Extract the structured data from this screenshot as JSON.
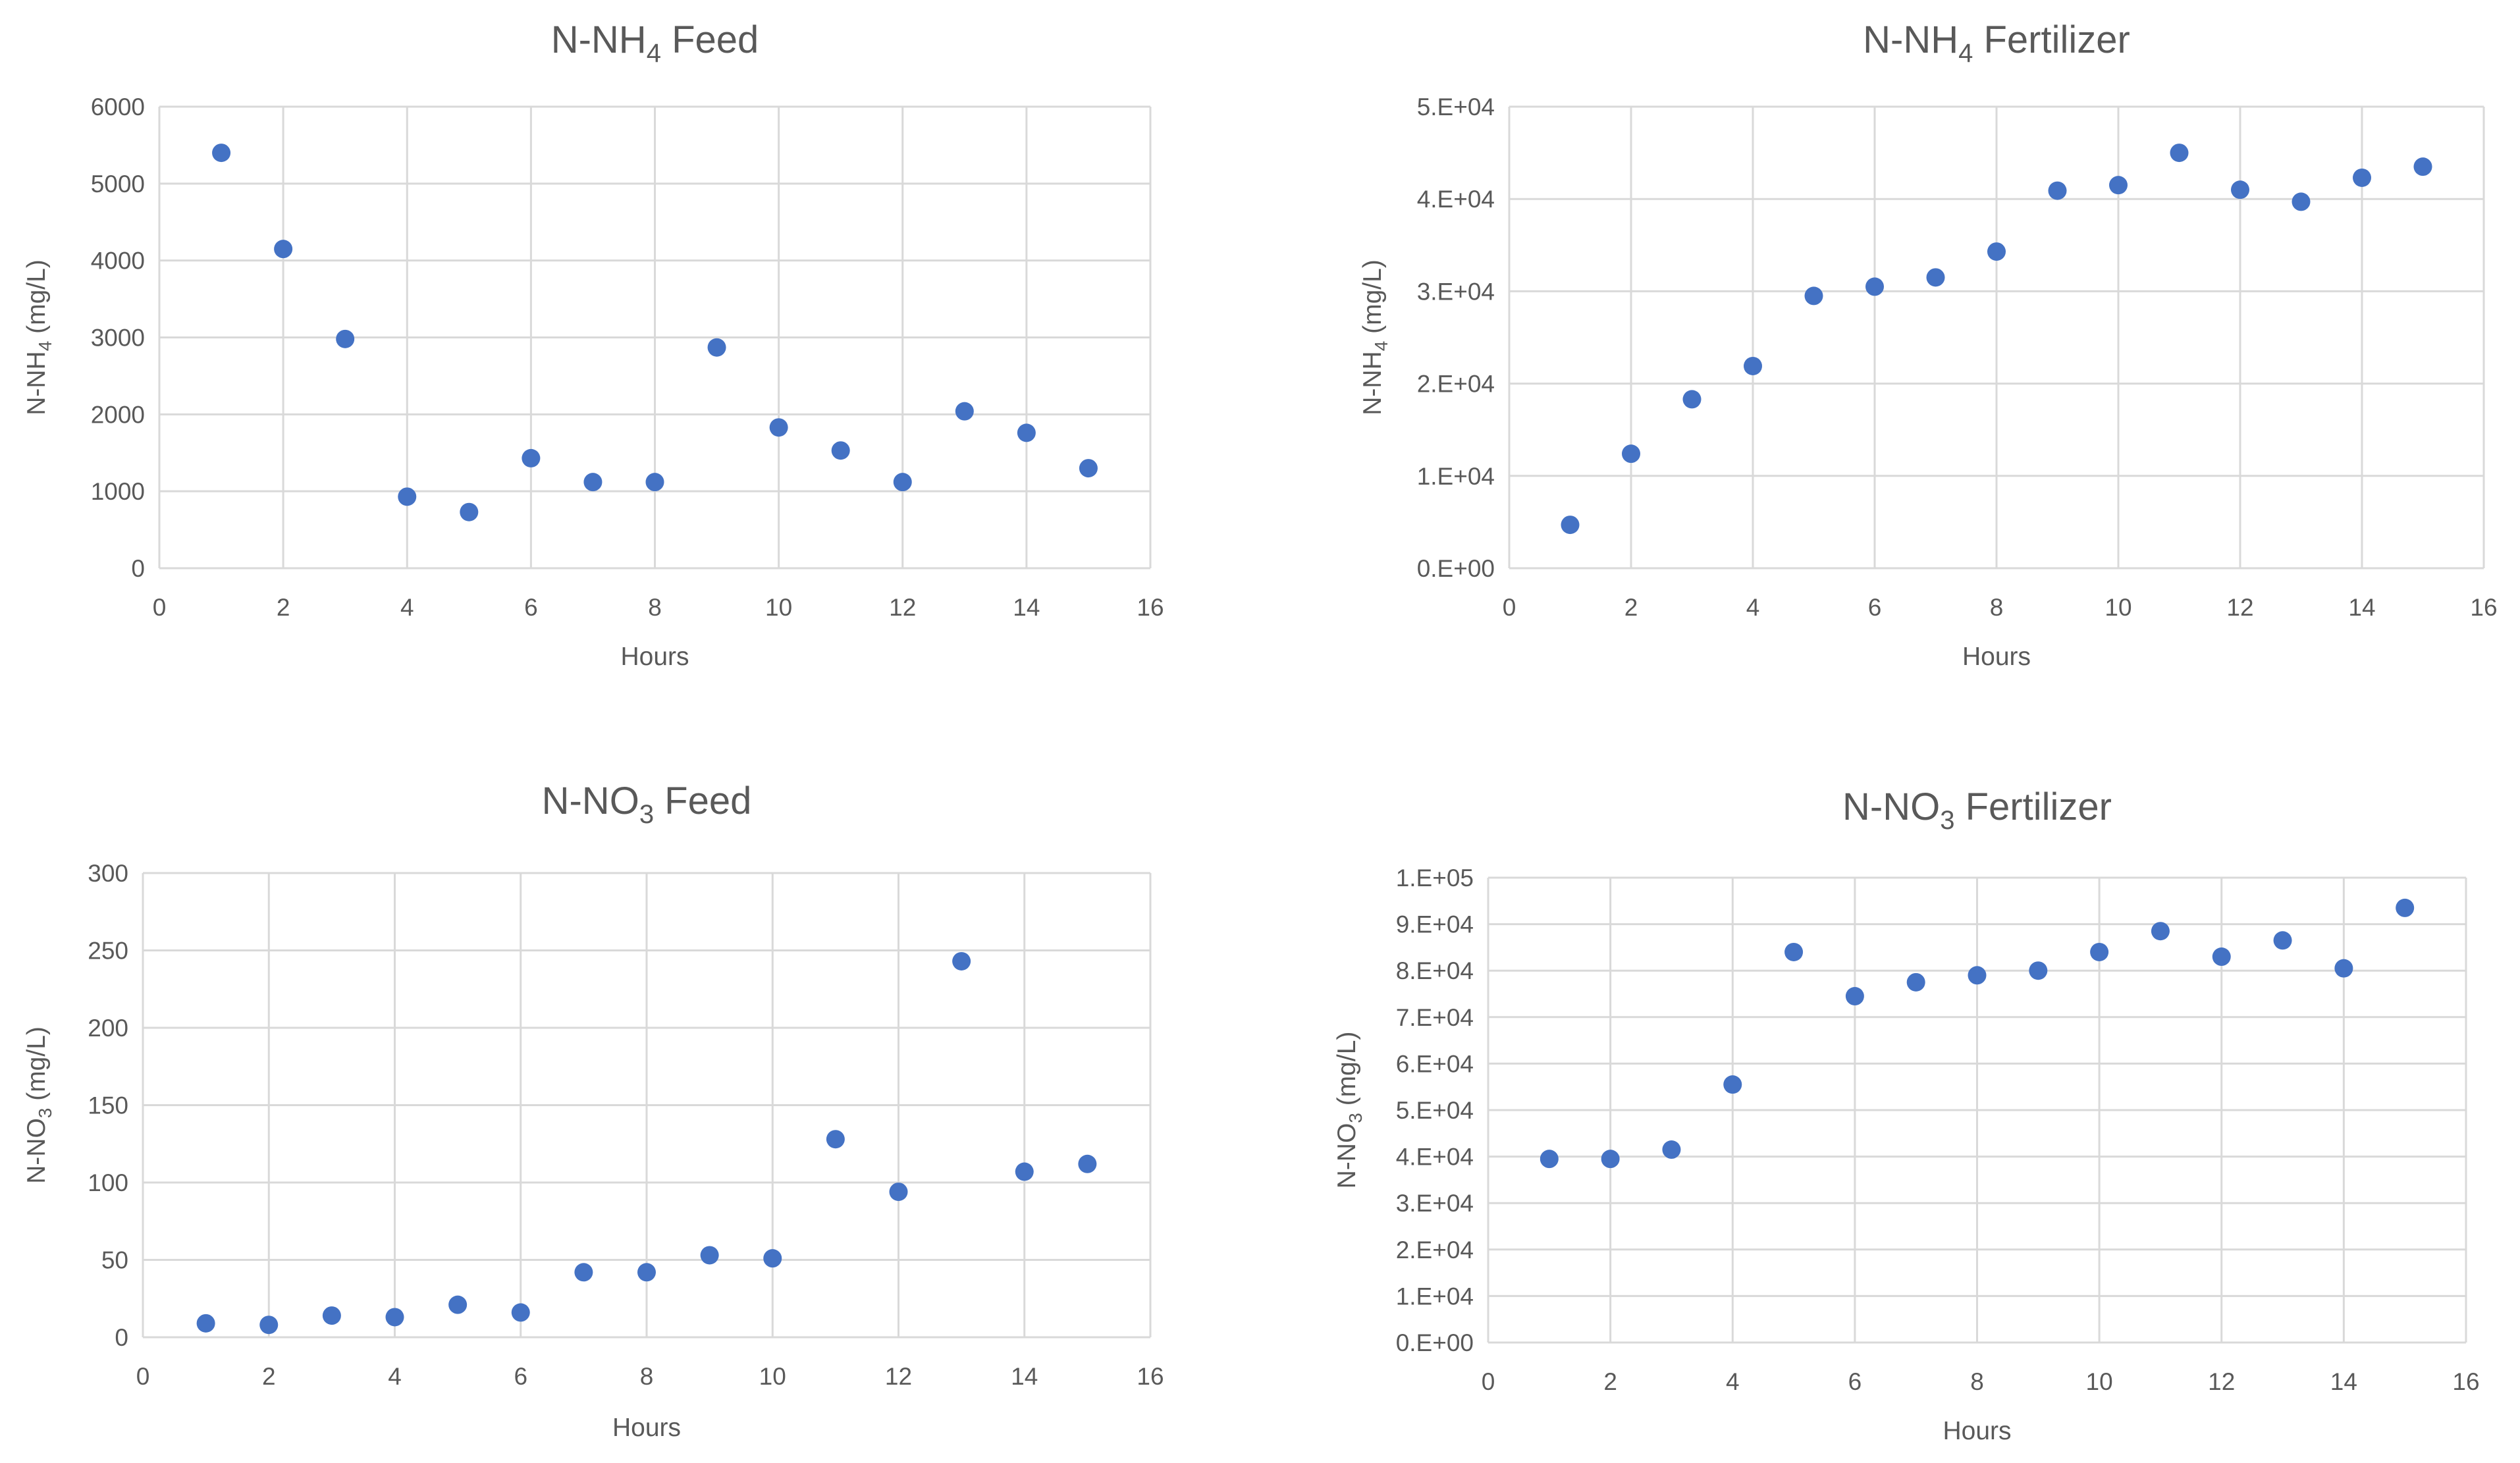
{
  "chart_data": [
    {
      "id": "nh4-feed",
      "type": "scatter",
      "title_main": "N-NH",
      "title_sub": "4",
      "title_rest": " Feed",
      "xlabel": "Hours",
      "ylabel_main": "N-NH",
      "ylabel_sub": "4",
      "ylabel_rest": " (mg/L)",
      "xlim": [
        0,
        16
      ],
      "ylim": [
        0,
        6000
      ],
      "x_ticks": [
        0,
        2,
        4,
        6,
        8,
        10,
        12,
        14,
        16
      ],
      "x_tick_labels": [
        "0",
        "2",
        "4",
        "6",
        "8",
        "10",
        "12",
        "14",
        "16"
      ],
      "y_ticks": [
        0,
        1000,
        2000,
        3000,
        4000,
        5000,
        6000
      ],
      "y_tick_labels": [
        "0",
        "1000",
        "2000",
        "3000",
        "4000",
        "5000",
        "6000"
      ],
      "grid": true,
      "marker_color": "#4472C4",
      "x": [
        1,
        2,
        3,
        4,
        5,
        6,
        7,
        8,
        9,
        10,
        11,
        12,
        13,
        14,
        15
      ],
      "y": [
        5400,
        4150,
        2980,
        930,
        730,
        1430,
        1120,
        1120,
        2870,
        1830,
        1530,
        1120,
        2040,
        1760,
        1300
      ]
    },
    {
      "id": "nh4-fertilizer",
      "type": "scatter",
      "title_main": "N-NH",
      "title_sub": "4",
      "title_rest": " Fertilizer",
      "xlabel": "Hours",
      "ylabel_main": "N-NH",
      "ylabel_sub": "4",
      "ylabel_rest": " (mg/L)",
      "xlim": [
        0,
        16
      ],
      "ylim": [
        0,
        50000
      ],
      "x_ticks": [
        0,
        2,
        4,
        6,
        8,
        10,
        12,
        14,
        16
      ],
      "x_tick_labels": [
        "0",
        "2",
        "4",
        "6",
        "8",
        "10",
        "12",
        "14",
        "16"
      ],
      "y_ticks": [
        0,
        10000,
        20000,
        30000,
        40000,
        50000
      ],
      "y_tick_labels": [
        "0.E+00",
        "1.E+04",
        "2.E+04",
        "3.E+04",
        "4.E+04",
        "5.E+04"
      ],
      "grid": true,
      "marker_color": "#4472C4",
      "x": [
        1,
        2,
        3,
        4,
        5,
        6,
        7,
        8,
        9,
        10,
        11,
        12,
        13,
        14,
        15
      ],
      "y": [
        4700,
        12400,
        18300,
        21900,
        29500,
        30500,
        31500,
        34300,
        40900,
        41500,
        45000,
        41000,
        39700,
        42300,
        43500
      ]
    },
    {
      "id": "no3-feed",
      "type": "scatter",
      "title_main": "N-NO",
      "title_sub": "3",
      "title_rest": " Feed",
      "xlabel": "Hours",
      "ylabel_main": "N-NO",
      "ylabel_sub": "3",
      "ylabel_rest": " (mg/L)",
      "xlim": [
        0,
        16
      ],
      "ylim": [
        0,
        300
      ],
      "x_ticks": [
        0,
        2,
        4,
        6,
        8,
        10,
        12,
        14,
        16
      ],
      "x_tick_labels": [
        "0",
        "2",
        "4",
        "6",
        "8",
        "10",
        "12",
        "14",
        "16"
      ],
      "y_ticks": [
        0,
        50,
        100,
        150,
        200,
        250,
        300
      ],
      "y_tick_labels": [
        "0",
        "50",
        "100",
        "150",
        "200",
        "250",
        "300"
      ],
      "grid": true,
      "marker_color": "#4472C4",
      "x": [
        1,
        2,
        3,
        4,
        5,
        6,
        7,
        8,
        9,
        10,
        11,
        12,
        13,
        14,
        15
      ],
      "y": [
        9,
        8,
        14,
        13,
        21,
        16,
        42,
        42,
        53,
        51,
        128,
        94,
        243,
        107,
        112
      ]
    },
    {
      "id": "no3-fertilizer",
      "type": "scatter",
      "title_main": "N-NO",
      "title_sub": "3",
      "title_rest": " Fertilizer",
      "xlabel": "Hours",
      "ylabel_main": "N-NO",
      "ylabel_sub": "3",
      "ylabel_rest": " (mg/L)",
      "xlim": [
        0,
        16
      ],
      "ylim": [
        0,
        100000
      ],
      "x_ticks": [
        0,
        2,
        4,
        6,
        8,
        10,
        12,
        14,
        16
      ],
      "x_tick_labels": [
        "0",
        "2",
        "4",
        "6",
        "8",
        "10",
        "12",
        "14",
        "16"
      ],
      "y_ticks": [
        0,
        10000,
        20000,
        30000,
        40000,
        50000,
        60000,
        70000,
        80000,
        90000,
        100000
      ],
      "y_tick_labels": [
        "0.E+00",
        "1.E+04",
        "2.E+04",
        "3.E+04",
        "4.E+04",
        "5.E+04",
        "6.E+04",
        "7.E+04",
        "8.E+04",
        "9.E+04",
        "1.E+05"
      ],
      "grid": true,
      "marker_color": "#4472C4",
      "x": [
        1,
        2,
        3,
        4,
        5,
        6,
        7,
        8,
        9,
        10,
        11,
        12,
        13,
        14,
        15
      ],
      "y": [
        39500,
        39500,
        41500,
        55500,
        84000,
        74500,
        77500,
        79000,
        80000,
        84000,
        88500,
        83000,
        86500,
        80500,
        93500
      ]
    }
  ]
}
